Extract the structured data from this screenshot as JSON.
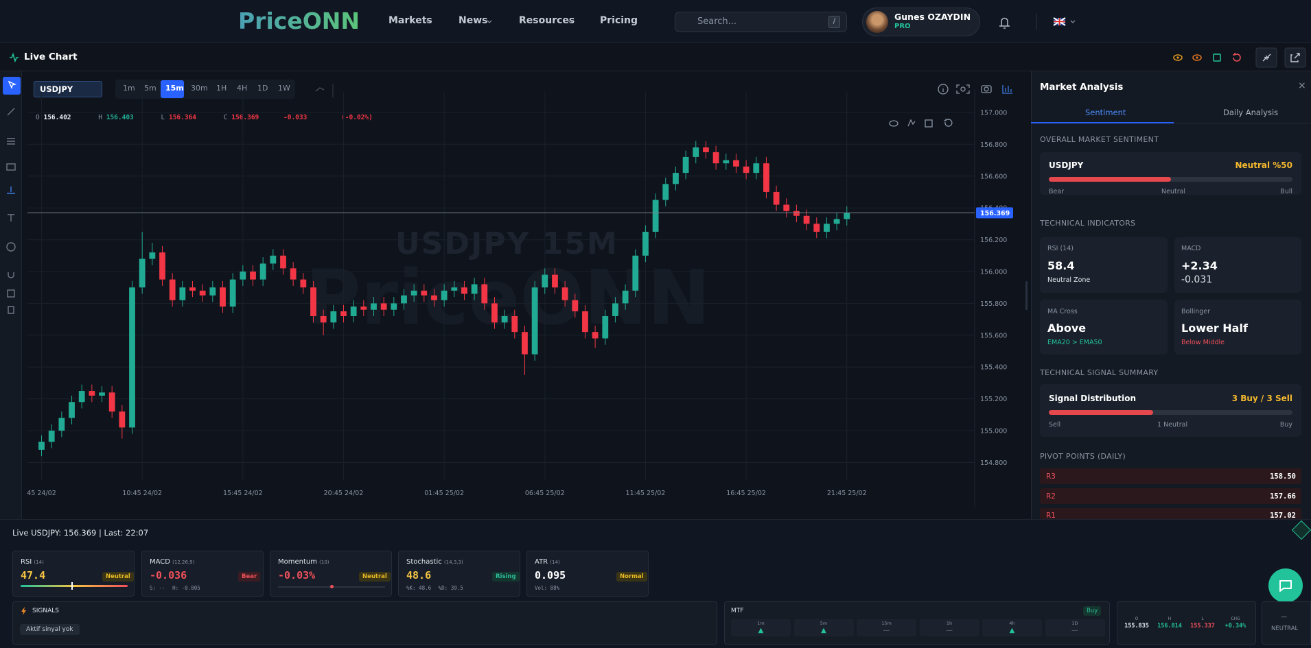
{
  "nav": {
    "logo": "PriceONN",
    "items": [
      "Markets",
      "News",
      "Resources",
      "Pricing"
    ],
    "search_placeholder": "Search...",
    "search_key": "/",
    "user_name": "Gunes OZAYDIN",
    "user_plan": "PRO"
  },
  "toolbar": {
    "title": "Live Chart"
  },
  "chart_toolbar": {
    "symbol": "USDJPY",
    "timeframes": [
      "1m",
      "5m",
      "15m",
      "30m",
      "1H",
      "4H",
      "1D",
      "1W"
    ]
  },
  "legend": {
    "o_label": "O",
    "o": "156.402",
    "h_label": "H",
    "h": "156.403",
    "l_label": "L",
    "l": "156.364",
    "c_label": "C",
    "c": "156.369",
    "change": "-0.033",
    "change_pct": "(-0.02%)"
  },
  "watermark": {
    "symbol": "USDJPY 15M",
    "brand": "PriceONN"
  },
  "chart_data": {
    "type": "candlestick",
    "up_color": "#22ab94",
    "down_color": "#f23645",
    "grid": true,
    "open": [
      154.88,
      154.93,
      155.0,
      155.08,
      155.18,
      155.25,
      155.22,
      155.24,
      155.12,
      155.02,
      155.9,
      156.08,
      156.12,
      155.95,
      155.82,
      155.9,
      155.88,
      155.85,
      155.9,
      155.78,
      155.95,
      156.0,
      155.95,
      156.05,
      156.1,
      156.02,
      155.95,
      155.9,
      155.72,
      155.68,
      155.75,
      155.72,
      155.78,
      155.76,
      155.8,
      155.76,
      155.8,
      155.85,
      155.88,
      155.85,
      155.82,
      155.88,
      155.9,
      155.86,
      155.92,
      155.8,
      155.68,
      155.72,
      155.62,
      155.48,
      155.9,
      155.98,
      155.9,
      155.82,
      155.75,
      155.62,
      155.58,
      155.72,
      155.8,
      155.88,
      156.1,
      156.25,
      156.45,
      156.55,
      156.62,
      156.72,
      156.78,
      156.75,
      156.68,
      156.7,
      156.66,
      156.62,
      156.68,
      156.5,
      156.42,
      156.38,
      156.35,
      156.3,
      156.25,
      156.3,
      156.33
    ],
    "high": [
      154.97,
      155.04,
      155.12,
      155.22,
      155.29,
      155.29,
      155.28,
      155.28,
      155.16,
      155.94,
      156.25,
      156.18,
      156.16,
      155.99,
      155.94,
      155.94,
      155.92,
      155.94,
      155.94,
      155.99,
      156.04,
      156.04,
      156.09,
      156.14,
      156.14,
      156.06,
      155.99,
      155.94,
      155.76,
      155.79,
      155.79,
      155.82,
      155.82,
      155.84,
      155.84,
      155.84,
      155.89,
      155.92,
      155.92,
      155.89,
      155.92,
      155.94,
      155.94,
      155.96,
      155.96,
      155.84,
      155.76,
      155.76,
      155.66,
      155.94,
      156.02,
      156.02,
      155.94,
      155.86,
      155.79,
      155.66,
      155.76,
      155.84,
      155.92,
      156.14,
      156.29,
      156.49,
      156.59,
      156.66,
      156.76,
      156.82,
      156.82,
      156.79,
      156.74,
      156.74,
      156.7,
      156.72,
      156.72,
      156.54,
      156.46,
      156.42,
      156.39,
      156.34,
      156.34,
      156.37,
      156.41
    ],
    "low": [
      154.84,
      154.89,
      154.96,
      155.04,
      155.14,
      155.18,
      155.18,
      155.08,
      154.95,
      154.98,
      155.86,
      156.04,
      155.91,
      155.78,
      155.78,
      155.84,
      155.81,
      155.81,
      155.74,
      155.74,
      155.91,
      155.91,
      155.91,
      156.01,
      155.98,
      155.91,
      155.86,
      155.68,
      155.6,
      155.64,
      155.68,
      155.68,
      155.72,
      155.72,
      155.72,
      155.72,
      155.76,
      155.81,
      155.81,
      155.78,
      155.78,
      155.84,
      155.82,
      155.82,
      155.76,
      155.64,
      155.64,
      155.58,
      155.35,
      155.44,
      155.86,
      155.86,
      155.78,
      155.71,
      155.58,
      155.52,
      155.54,
      155.68,
      155.76,
      155.84,
      156.06,
      156.21,
      156.41,
      156.51,
      156.58,
      156.68,
      156.71,
      156.64,
      156.64,
      156.62,
      156.58,
      156.58,
      156.46,
      156.38,
      156.34,
      156.31,
      156.26,
      156.21,
      156.21,
      156.26,
      156.29
    ],
    "close": [
      154.93,
      155.0,
      155.08,
      155.18,
      155.25,
      155.22,
      155.24,
      155.12,
      155.02,
      155.9,
      156.08,
      156.12,
      155.95,
      155.82,
      155.9,
      155.88,
      155.85,
      155.9,
      155.78,
      155.95,
      156.0,
      155.95,
      156.05,
      156.1,
      156.02,
      155.95,
      155.9,
      155.72,
      155.68,
      155.75,
      155.72,
      155.78,
      155.76,
      155.8,
      155.76,
      155.8,
      155.85,
      155.88,
      155.85,
      155.82,
      155.88,
      155.9,
      155.86,
      155.92,
      155.8,
      155.68,
      155.72,
      155.62,
      155.48,
      155.9,
      155.98,
      155.9,
      155.82,
      155.75,
      155.62,
      155.58,
      155.72,
      155.8,
      155.88,
      156.1,
      156.25,
      156.45,
      156.55,
      156.62,
      156.72,
      156.78,
      156.75,
      156.68,
      156.7,
      156.66,
      156.62,
      156.68,
      156.5,
      156.42,
      156.38,
      156.35,
      156.3,
      156.25,
      156.3,
      156.33,
      156.37
    ],
    "xlim": [
      -1.4,
      92.7
    ],
    "xticks": [
      {
        "value": 0,
        "label": "45 24/02"
      },
      {
        "value": 10,
        "label": "10:45 24/02"
      },
      {
        "value": 20,
        "label": "15:45 24/02"
      },
      {
        "value": 30,
        "label": "20:45 24/02"
      },
      {
        "value": 40,
        "label": "01:45 25/02"
      },
      {
        "value": 50,
        "label": "06:45 25/02"
      },
      {
        "value": 60,
        "label": "11:45 25/02"
      },
      {
        "value": 70,
        "label": "16:45 25/02"
      },
      {
        "value": 80,
        "label": "21:45 25/02"
      }
    ],
    "ylim": [
      154.69,
      157.06
    ],
    "yticks": [
      {
        "value": 157,
        "label": "157.000"
      },
      {
        "value": 156.8,
        "label": "156.800"
      },
      {
        "value": 156.6,
        "label": "156.600"
      },
      {
        "value": 156.4,
        "label": "156.400"
      },
      {
        "value": 156.2,
        "label": "156.200"
      },
      {
        "value": 156,
        "label": "156.000"
      },
      {
        "value": 155.8,
        "label": "155.800"
      },
      {
        "value": 155.6,
        "label": "155.600"
      },
      {
        "value": 155.4,
        "label": "155.400"
      },
      {
        "value": 155.2,
        "label": "155.200"
      },
      {
        "value": 155,
        "label": "155.000"
      },
      {
        "value": 154.8,
        "label": "154.800"
      }
    ],
    "last_price": {
      "value": 156.369,
      "label": "156.369"
    }
  },
  "analysis": {
    "title": "Market Analysis",
    "close": "×",
    "tabs": [
      "Sentiment",
      "Daily Analysis"
    ],
    "sentiment_heading": "OVERALL MARKET SENTIMENT",
    "sentiment_symbol": "USDJPY",
    "sentiment": {
      "value": 50,
      "label": "Neutral %50"
    },
    "scale": [
      "Bear",
      "Neutral",
      "Bull"
    ],
    "indicators_heading": "TECHNICAL INDICATORS",
    "indicators": [
      {
        "name": "RSI (14)",
        "value": "58.4",
        "note": "Neutral Zone"
      },
      {
        "name": "MACD",
        "value": "+2.34",
        "note": "-0.031"
      },
      {
        "name": "MA Cross",
        "value": "Above",
        "note": "EMA20 > EMA50"
      },
      {
        "name": "Bollinger",
        "value": "Lower Half",
        "note": "Below Middle"
      }
    ],
    "summary_heading": "TECHNICAL SIGNAL SUMMARY",
    "summary_title": "Signal Distribution",
    "summary_value": "3 Buy / 3 Sell",
    "summary_scale": [
      "Sell",
      "1 Neutral",
      "Buy"
    ],
    "pivots_heading": "PIVOT POINTS (DAILY)",
    "pivots": [
      [
        "R3",
        "158.50"
      ],
      [
        "R2",
        "157.66"
      ],
      [
        "R1",
        "157.02"
      ]
    ]
  },
  "bottom": {
    "status": "Live USDJPY: 156.369 | Last: 22:07",
    "cards": [
      {
        "name": "RSI",
        "params": "(14)",
        "value": 47.4,
        "badge": "Neutral"
      },
      {
        "name": "MACD",
        "params": "(12,26,9)",
        "value": "-0.036",
        "badge": "Bear",
        "sub": [
          "S: --",
          "H: -0.005"
        ]
      },
      {
        "name": "Momentum",
        "params": "(10)",
        "value": "-0.03%",
        "badge": "Neutral"
      },
      {
        "name": "Stochastic",
        "params": "(14,3,3)",
        "value": "48.6",
        "badge": "Rising",
        "sub": [
          "%K: 48.6",
          "%D: 39.5"
        ]
      },
      {
        "name": "ATR",
        "params": "(14)",
        "value": "0.095",
        "badge": "Normal",
        "sub": [
          "Vol: 88%"
        ]
      }
    ],
    "signals": {
      "title": "SIGNALS",
      "empty": "Aktif sinyal yok"
    },
    "mtf": {
      "title": "MTF",
      "badge": "Buy",
      "frames": [
        "1m",
        "5m",
        "15m",
        "1h",
        "4h",
        "1D"
      ],
      "states": [
        "▲",
        "▲",
        "—",
        "—",
        "▲",
        "—"
      ]
    },
    "ohlc": [
      [
        "O",
        "155.835"
      ],
      [
        "H",
        "156.814"
      ],
      [
        "L",
        "155.337"
      ],
      [
        "CHG",
        "+0.34%"
      ]
    ],
    "bias": {
      "symbol": "—",
      "label": "NEUTRAL"
    }
  }
}
